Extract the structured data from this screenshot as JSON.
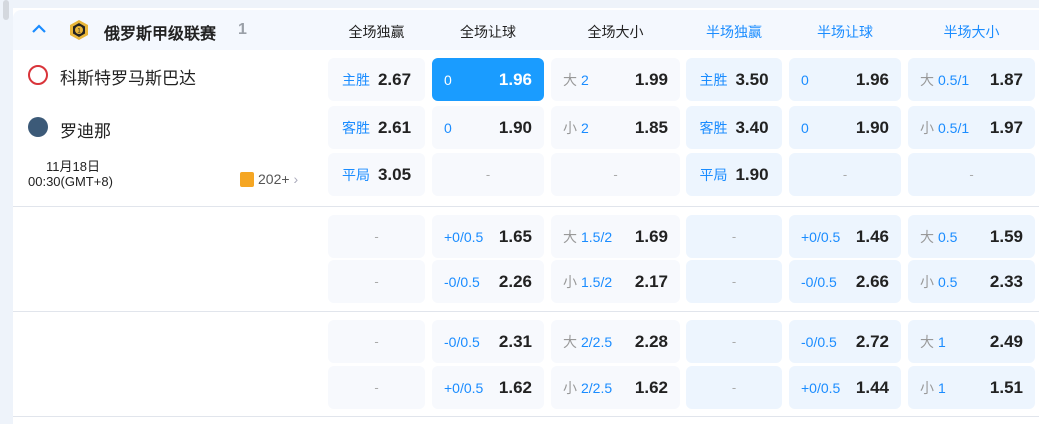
{
  "league": {
    "name": "俄罗斯甲级联赛",
    "count": "1",
    "collapse_icon": "chevron-up-icon",
    "icon": "league-badge-icon"
  },
  "columns": [
    {
      "label": "全场独赢",
      "color": "#222222"
    },
    {
      "label": "全场让球",
      "color": "#222222"
    },
    {
      "label": "全场大小",
      "color": "#222222"
    },
    {
      "label": "半场独赢",
      "color": "#1a8cff"
    },
    {
      "label": "半场让球",
      "color": "#1a8cff"
    },
    {
      "label": "半场大小",
      "color": "#1a8cff"
    }
  ],
  "match": {
    "home": "科斯特罗马斯巴达",
    "away": "罗迪那",
    "date": "11月18日",
    "time": "00:30(GMT+8)",
    "markets": "202+"
  },
  "blocks": [
    [
      [
        {
          "lbl": "主胜",
          "odds": "2.67"
        },
        {
          "ln": "0",
          "odds": "1.96",
          "selected": true
        },
        {
          "pre": "大",
          "ln": "2",
          "odds": "1.99"
        },
        {
          "lbl": "主胜",
          "odds": "3.50"
        },
        {
          "ln": "0",
          "odds": "1.96"
        },
        {
          "pre": "大",
          "ln": "0.5/1",
          "odds": "1.87"
        }
      ],
      [
        {
          "lbl": "客胜",
          "odds": "2.61"
        },
        {
          "ln": "0",
          "odds": "1.90"
        },
        {
          "pre": "小",
          "ln": "2",
          "odds": "1.85"
        },
        {
          "lbl": "客胜",
          "odds": "3.40"
        },
        {
          "ln": "0",
          "odds": "1.90"
        },
        {
          "pre": "小",
          "ln": "0.5/1",
          "odds": "1.97"
        }
      ],
      [
        {
          "lbl": "平局",
          "odds": "3.05"
        },
        {
          "empty": "-"
        },
        {
          "empty": "-"
        },
        {
          "lbl": "平局",
          "odds": "1.90"
        },
        {
          "empty": "-"
        },
        {
          "empty": "-"
        }
      ]
    ],
    [
      [
        {
          "empty": "-"
        },
        {
          "ln": "+0/0.5",
          "odds": "1.65"
        },
        {
          "pre": "大",
          "ln": "1.5/2",
          "odds": "1.69"
        },
        {
          "empty": "-"
        },
        {
          "ln": "+0/0.5",
          "odds": "1.46"
        },
        {
          "pre": "大",
          "ln": "0.5",
          "odds": "1.59"
        }
      ],
      [
        {
          "empty": "-"
        },
        {
          "ln": "-0/0.5",
          "odds": "2.26"
        },
        {
          "pre": "小",
          "ln": "1.5/2",
          "odds": "2.17"
        },
        {
          "empty": "-"
        },
        {
          "ln": "-0/0.5",
          "odds": "2.66"
        },
        {
          "pre": "小",
          "ln": "0.5",
          "odds": "2.33"
        }
      ]
    ],
    [
      [
        {
          "empty": "-"
        },
        {
          "ln": "-0/0.5",
          "odds": "2.31"
        },
        {
          "pre": "大",
          "ln": "2/2.5",
          "odds": "2.28"
        },
        {
          "empty": "-"
        },
        {
          "ln": "-0/0.5",
          "odds": "2.72"
        },
        {
          "pre": "大",
          "ln": "1",
          "odds": "2.49"
        }
      ],
      [
        {
          "empty": "-"
        },
        {
          "ln": "+0/0.5",
          "odds": "1.62"
        },
        {
          "pre": "小",
          "ln": "2/2.5",
          "odds": "1.62"
        },
        {
          "empty": "-"
        },
        {
          "ln": "+0/0.5",
          "odds": "1.44"
        },
        {
          "pre": "小",
          "ln": "1",
          "odds": "1.51"
        }
      ]
    ]
  ]
}
